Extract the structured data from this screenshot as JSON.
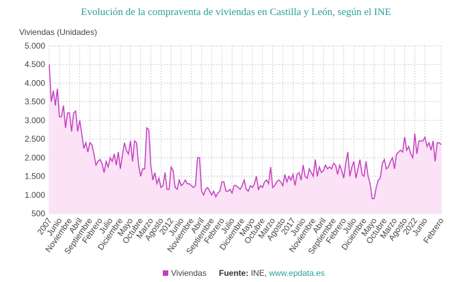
{
  "chart_data": {
    "type": "line",
    "title": "Evolución de la compraventa de viviendas en Castilla y León, según el INE",
    "y_label": "Viviendas (Unidades)",
    "categories": [
      "2007",
      null,
      null,
      null,
      null,
      "Junio",
      null,
      null,
      null,
      null,
      "Noviembre",
      null,
      null,
      null,
      null,
      "Abril",
      null,
      null,
      null,
      null,
      "Septiembre",
      null,
      null,
      null,
      null,
      "Febrero",
      null,
      null,
      null,
      null,
      "Julio",
      null,
      null,
      null,
      null,
      "Diciembre",
      null,
      null,
      null,
      null,
      "Mayo",
      null,
      null,
      null,
      null,
      "Octubre",
      null,
      null,
      null,
      null,
      "Marzo",
      null,
      null,
      null,
      null,
      "Agosto",
      null,
      null,
      null,
      null,
      "2012",
      null,
      null,
      null,
      null,
      "Junio",
      null,
      null,
      null,
      null,
      "Noviembre",
      null,
      null,
      null,
      null,
      "Abril",
      null,
      null,
      null,
      null,
      "Septiembre",
      null,
      null,
      null,
      null,
      "Febrero",
      null,
      null,
      null,
      null,
      "Julio",
      null,
      null,
      null,
      null,
      "Diciembre",
      null,
      null,
      null,
      null,
      "Mayo",
      null,
      null,
      null,
      null,
      "Octubre",
      null,
      null,
      null,
      null,
      "Marzo",
      null,
      null,
      null,
      null,
      "Agosto",
      null,
      null,
      null,
      null,
      "2017",
      null,
      null,
      null,
      null,
      "Junio",
      null,
      null,
      null,
      null,
      "Noviembre",
      null,
      null,
      null,
      null,
      "Abril",
      null,
      null,
      null,
      null,
      "Septiembre",
      null,
      null,
      null,
      null,
      "Febrero",
      null,
      null,
      null,
      null,
      "Julio",
      null,
      null,
      null,
      null,
      "Diciembre",
      null,
      null,
      null,
      null,
      "Mayo",
      null,
      null,
      null,
      null,
      "Octubre",
      null,
      null,
      null,
      null,
      "Marzo",
      null,
      null,
      null,
      null,
      "Agosto",
      null,
      null,
      null,
      null,
      "2022",
      null,
      null,
      null,
      null,
      "Junio",
      null,
      null,
      null,
      null,
      null,
      null,
      null,
      "Febrero"
    ],
    "series": [
      {
        "name": "Viviendas",
        "color": "#c23fc0",
        "fill": "#fbe2f6",
        "values": [
          4500,
          3500,
          3800,
          3400,
          3850,
          3100,
          3100,
          3400,
          2800,
          3200,
          3200,
          2700,
          3200,
          3250,
          2700,
          3000,
          2650,
          2250,
          2400,
          2150,
          2400,
          2350,
          2100,
          1800,
          1900,
          1950,
          1850,
          1600,
          1900,
          1750,
          2000,
          1900,
          2100,
          1800,
          2150,
          1700,
          2050,
          2400,
          2200,
          2100,
          2450,
          1900,
          2450,
          2400,
          1800,
          1500,
          1700,
          1700,
          2800,
          2750,
          1800,
          1400,
          1600,
          1300,
          1450,
          1200,
          1250,
          1600,
          1150,
          1150,
          1750,
          1650,
          1200,
          1150,
          1400,
          1250,
          1300,
          1400,
          1300,
          1300,
          1250,
          1200,
          1250,
          2000,
          2000,
          1100,
          1000,
          1150,
          1200,
          1100,
          1000,
          1100,
          950,
          1050,
          1100,
          1350,
          1350,
          1100,
          1100,
          1150,
          1050,
          1250,
          1250,
          1200,
          1150,
          1250,
          1400,
          1150,
          1100,
          1250,
          1200,
          1300,
          1500,
          1150,
          1250,
          1200,
          1350,
          1400,
          1300,
          1750,
          1200,
          1250,
          1350,
          1400,
          1350,
          1250,
          1550,
          1350,
          1500,
          1400,
          1550,
          1250,
          1550,
          1600,
          1400,
          1800,
          1500,
          1450,
          1700,
          1600,
          1500,
          1950,
          1500,
          1750,
          1600,
          1650,
          1800,
          1700,
          1750,
          1700,
          1850,
          1800,
          1550,
          1800,
          1650,
          1450,
          1850,
          2150,
          1500,
          1750,
          1900,
          1450,
          1700,
          1950,
          1550,
          1500,
          1900,
          1500,
          1300,
          900,
          900,
          1200,
          1400,
          1450,
          1850,
          1950,
          1700,
          1750,
          1900,
          2000,
          1700,
          2100,
          2150,
          2200,
          2150,
          2550,
          2200,
          2300,
          2100,
          2000,
          2650,
          2100,
          2450,
          2450,
          2450,
          2550,
          2300,
          2400,
          2200,
          2450,
          1900,
          2400,
          2400,
          2350
        ]
      }
    ],
    "ylim": [
      500,
      5000
    ],
    "yticks": [
      500,
      {
        "value": 1000,
        "label": "1.000"
      },
      {
        "value": 1500,
        "label": "1.500"
      },
      {
        "value": 2000,
        "label": "2.000"
      },
      {
        "value": 2500,
        "label": "2.500"
      },
      {
        "value": 3000,
        "label": "3.000"
      },
      {
        "value": 3500,
        "label": "3.500"
      },
      {
        "value": 4000,
        "label": "4.000"
      },
      {
        "value": 4500,
        "label": "4.500"
      },
      {
        "value": 5000,
        "label": "5.000"
      }
    ],
    "grid": true,
    "source": {
      "label": "Fuente:",
      "text": "INE,",
      "link": "www.epdata.es"
    }
  }
}
